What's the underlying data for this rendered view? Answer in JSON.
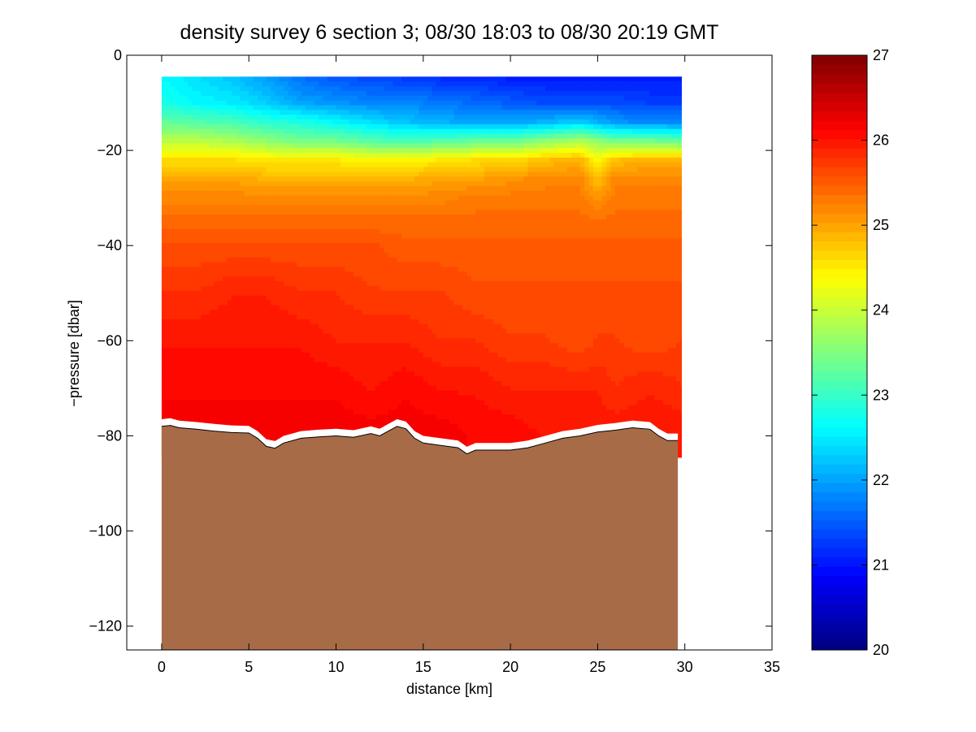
{
  "chart_data": {
    "type": "heatmap",
    "title": "density survey 6 section 3; 08/30 18:03 to 08/30 20:19 GMT",
    "xlabel": "distance [km]",
    "ylabel": "−pressure [dbar]",
    "xlim": [
      -2,
      35
    ],
    "ylim": [
      -125,
      0
    ],
    "xticks": [
      0,
      5,
      10,
      15,
      20,
      25,
      30,
      35
    ],
    "yticks": [
      0,
      -20,
      -40,
      -60,
      -80,
      -100,
      -120
    ],
    "xtick_labels": [
      "0",
      "5",
      "10",
      "15",
      "20",
      "25",
      "30",
      "35"
    ],
    "ytick_labels": [
      "0",
      "−20",
      "−40",
      "−60",
      "−80",
      "−100",
      "−120"
    ],
    "colorbar": {
      "min": 20,
      "max": 27,
      "ticks": [
        "20",
        "21",
        "22",
        "23",
        "24",
        "25",
        "26",
        "27"
      ],
      "colormap": "jet"
    },
    "distance_km": [
      0,
      2,
      4,
      6,
      8,
      10,
      12,
      14,
      16,
      18,
      20,
      22,
      24,
      25,
      26,
      28,
      30
    ],
    "depth_m": [
      4,
      10,
      14,
      18,
      22,
      26,
      30,
      35,
      40,
      50,
      60,
      70,
      80
    ],
    "density": [
      [
        22.6,
        22.4,
        22.2,
        21.9,
        21.6,
        21.4,
        21.3,
        21.2,
        21.1,
        21.1,
        21.0,
        21.0,
        21.0,
        21.0,
        21.0,
        21.0,
        21.0
      ],
      [
        22.8,
        22.6,
        22.5,
        22.3,
        22.0,
        21.9,
        21.8,
        21.8,
        21.7,
        21.6,
        21.5,
        21.4,
        21.4,
        21.4,
        21.4,
        21.3,
        21.3
      ],
      [
        23.3,
        23.2,
        23.1,
        22.9,
        22.8,
        22.6,
        22.4,
        22.2,
        22.1,
        22.0,
        22.0,
        22.1,
        22.3,
        22.1,
        21.9,
        21.8,
        21.8
      ],
      [
        23.9,
        23.9,
        23.8,
        23.6,
        23.4,
        23.4,
        23.2,
        23.1,
        23.2,
        23.3,
        23.3,
        23.6,
        23.8,
        23.6,
        23.4,
        23.4,
        23.3
      ],
      [
        24.6,
        24.6,
        24.6,
        24.5,
        24.5,
        24.5,
        24.4,
        24.4,
        24.5,
        24.6,
        24.6,
        24.8,
        24.9,
        24.4,
        24.8,
        24.9,
        24.9
      ],
      [
        25.0,
        25.0,
        25.0,
        24.9,
        24.9,
        24.9,
        24.9,
        24.9,
        25.0,
        25.0,
        25.1,
        25.2,
        25.2,
        24.8,
        25.2,
        25.2,
        25.2
      ],
      [
        25.2,
        25.2,
        25.2,
        25.2,
        25.2,
        25.2,
        25.2,
        25.2,
        25.2,
        25.3,
        25.3,
        25.3,
        25.3,
        25.1,
        25.3,
        25.3,
        25.3
      ],
      [
        25.4,
        25.4,
        25.4,
        25.4,
        25.4,
        25.4,
        25.4,
        25.4,
        25.4,
        25.4,
        25.4,
        25.4,
        25.4,
        25.4,
        25.4,
        25.4,
        25.4
      ],
      [
        25.6,
        25.6,
        25.6,
        25.6,
        25.6,
        25.6,
        25.6,
        25.5,
        25.5,
        25.5,
        25.5,
        25.5,
        25.5,
        25.5,
        25.5,
        25.5,
        25.5
      ],
      [
        25.8,
        25.8,
        25.9,
        25.9,
        25.8,
        25.8,
        25.7,
        25.7,
        25.7,
        25.6,
        25.6,
        25.6,
        25.6,
        25.6,
        25.6,
        25.6,
        25.6
      ],
      [
        26.0,
        26.0,
        26.0,
        26.0,
        26.0,
        25.9,
        25.9,
        25.9,
        25.8,
        25.8,
        25.7,
        25.7,
        25.6,
        25.7,
        25.7,
        25.6,
        25.7
      ],
      [
        26.1,
        26.1,
        26.1,
        26.1,
        26.1,
        26.1,
        26.0,
        26.1,
        26.0,
        26.0,
        25.9,
        25.9,
        25.9,
        25.9,
        25.8,
        25.9,
        25.8
      ],
      [
        26.2,
        26.2,
        26.2,
        26.2,
        26.2,
        26.2,
        26.2,
        26.2,
        26.2,
        26.1,
        26.1,
        26.0,
        26.0,
        26.0,
        26.0,
        26.0,
        26.0
      ]
    ],
    "bottom_profile": {
      "distance_km": [
        0,
        0.5,
        1,
        2,
        3,
        4,
        5,
        5.5,
        6,
        6.5,
        7,
        8,
        9,
        10,
        11,
        12,
        12.5,
        13,
        13.5,
        14,
        14.5,
        15,
        16,
        17,
        17.5,
        18,
        19,
        20,
        21,
        22,
        23,
        24,
        25,
        26,
        27,
        28,
        28.5,
        29,
        29.6
      ],
      "pressure_dbar": [
        -78.0,
        -77.8,
        -78.3,
        -78.6,
        -79.0,
        -79.3,
        -79.4,
        -80.5,
        -82.2,
        -82.6,
        -81.5,
        -80.5,
        -80.2,
        -80.0,
        -80.3,
        -79.5,
        -80.0,
        -79.0,
        -78.0,
        -78.5,
        -80.5,
        -81.5,
        -82.0,
        -82.5,
        -83.8,
        -83.0,
        -83.0,
        -83.0,
        -82.5,
        -81.5,
        -80.5,
        -80.0,
        -79.2,
        -78.8,
        -78.3,
        -78.6,
        -80.0,
        -81.0,
        -81.0
      ]
    },
    "data_coverage": {
      "top_pressure_dbar": -4.5,
      "right_edge_km": 29.8,
      "bottom_edge_dbar": -76.5
    }
  }
}
